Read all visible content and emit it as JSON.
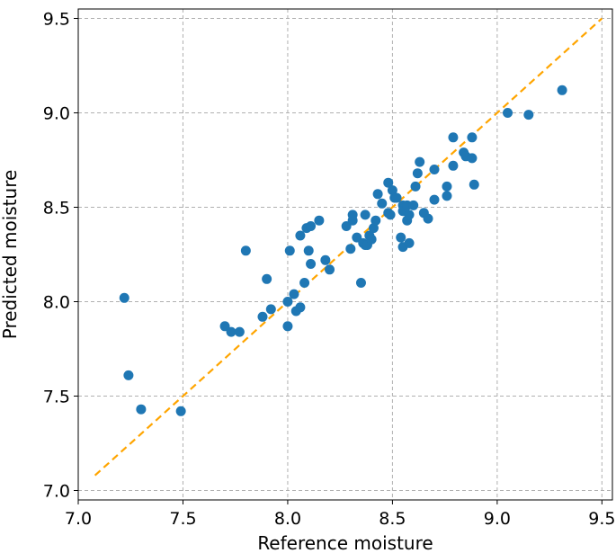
{
  "chart_data": {
    "type": "scatter",
    "xlabel": "Reference moisture",
    "ylabel": "Predicted moisture",
    "xlim": [
      7.0,
      9.55
    ],
    "ylim": [
      6.95,
      9.55
    ],
    "xticks": [
      "7.0",
      "7.5",
      "8.0",
      "8.5",
      "9.0",
      "9.5"
    ],
    "yticks": [
      "7.0",
      "7.5",
      "8.0",
      "8.5",
      "9.0",
      "9.5"
    ],
    "grid": true,
    "colors": {
      "points": "#1f77b4",
      "reference_line": "#ffa500",
      "grid": "#b0b0b0"
    },
    "reference_line": {
      "style": "dashed",
      "x": [
        7.08,
        9.5
      ],
      "y": [
        7.08,
        9.5
      ]
    },
    "series": [
      {
        "x": [
          7.22,
          7.24,
          7.3,
          7.49,
          7.7,
          7.73,
          7.77,
          7.8,
          7.88,
          7.9,
          7.92,
          8.0,
          8.0,
          8.01,
          8.03,
          8.04,
          8.06,
          8.06,
          8.08,
          8.09,
          8.1,
          8.11,
          8.11,
          8.15,
          8.18,
          8.2,
          8.28,
          8.3,
          8.31,
          8.31,
          8.33,
          8.35,
          8.36,
          8.37,
          8.37,
          8.38,
          8.39,
          8.4,
          8.41,
          8.42,
          8.43,
          8.45,
          8.48,
          8.48,
          8.49,
          8.5,
          8.51,
          8.52,
          8.54,
          8.55,
          8.55,
          8.55,
          8.57,
          8.57,
          8.58,
          8.58,
          8.6,
          8.61,
          8.62,
          8.63,
          8.65,
          8.67,
          8.7,
          8.7,
          8.76,
          8.76,
          8.79,
          8.79,
          8.84,
          8.85,
          8.88,
          8.88,
          8.89,
          9.05,
          9.15,
          9.31
        ],
        "y": [
          8.02,
          7.61,
          7.43,
          7.42,
          7.87,
          7.84,
          7.84,
          8.27,
          7.92,
          8.12,
          7.96,
          7.87,
          8.0,
          8.27,
          8.04,
          7.95,
          7.97,
          8.35,
          8.1,
          8.39,
          8.27,
          8.2,
          8.4,
          8.43,
          8.22,
          8.17,
          8.4,
          8.28,
          8.43,
          8.46,
          8.34,
          8.1,
          8.31,
          8.3,
          8.46,
          8.3,
          8.35,
          8.33,
          8.39,
          8.43,
          8.57,
          8.52,
          8.47,
          8.63,
          8.46,
          8.59,
          8.55,
          8.55,
          8.34,
          8.29,
          8.51,
          8.48,
          8.51,
          8.43,
          8.31,
          8.46,
          8.51,
          8.61,
          8.68,
          8.74,
          8.47,
          8.44,
          8.7,
          8.54,
          8.56,
          8.61,
          8.87,
          8.72,
          8.79,
          8.77,
          8.76,
          8.87,
          8.62,
          9.0,
          8.99,
          9.12
        ]
      }
    ]
  }
}
